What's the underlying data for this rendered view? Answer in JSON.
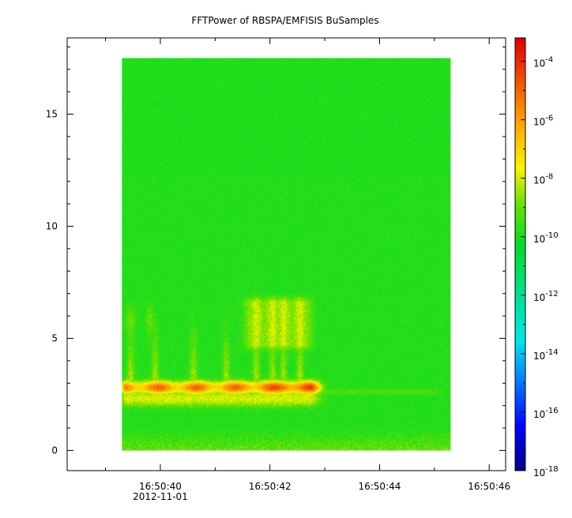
{
  "chart_data": {
    "type": "heatmap",
    "title": "FFTPower of RBSPA/EMFISIS  BuSamples",
    "xlabel": "",
    "ylabel": "",
    "x_axis": {
      "type": "time",
      "tick_labels": [
        "16:50:40",
        "16:50:42",
        "16:50:44",
        "16:50:46"
      ],
      "tick_values_s": [
        40,
        42,
        44,
        46
      ],
      "date_label": "2012-11-01",
      "range_s": [
        38.3,
        46.3
      ],
      "data_range_s": [
        39.3,
        45.3
      ]
    },
    "y_axis": {
      "tick_labels": [
        "0",
        "5",
        "10",
        "15"
      ],
      "tick_values": [
        0,
        5,
        10,
        15
      ],
      "range": [
        -0.9,
        18.4
      ],
      "data_range": [
        0,
        17.5
      ]
    },
    "colorbar": {
      "scale": "log",
      "range_exponent": [
        -18,
        -3.2
      ],
      "tick_labels": [
        {
          "base": "10",
          "exp": "-4"
        },
        {
          "base": "10",
          "exp": "-6"
        },
        {
          "base": "10",
          "exp": "-8"
        },
        {
          "base": "10",
          "exp": "-10"
        },
        {
          "base": "10",
          "exp": "-12"
        },
        {
          "base": "10",
          "exp": "-14"
        },
        {
          "base": "10",
          "exp": "-16"
        },
        {
          "base": "10",
          "exp": "-18"
        }
      ],
      "tick_exponents": [
        -4,
        -6,
        -8,
        -10,
        -12,
        -14,
        -16,
        -18
      ]
    },
    "features": {
      "background_level_exp": -10.3,
      "upper_band": {
        "y_from": 12.2,
        "y_to": 17.5,
        "level_exp": -11.4
      },
      "main_emission": {
        "y_center": 2.8,
        "t_from": 39.3,
        "t_to": 42.9,
        "level_exp": -4.9
      },
      "secondary_band": {
        "y_center": 2.3,
        "level_exp": -7.9
      },
      "burst_region": {
        "y_from": 4.5,
        "y_to": 6.8,
        "t_from": 41.5,
        "t_to": 42.8,
        "level_exp": -8.3
      },
      "low_band": {
        "y_from": 0,
        "y_to": 0.6,
        "level_exp": -9.0
      },
      "tail": {
        "y_center": 2.6,
        "t_from": 42.9,
        "t_to": 45.3,
        "level_exp": -9.3
      }
    }
  }
}
